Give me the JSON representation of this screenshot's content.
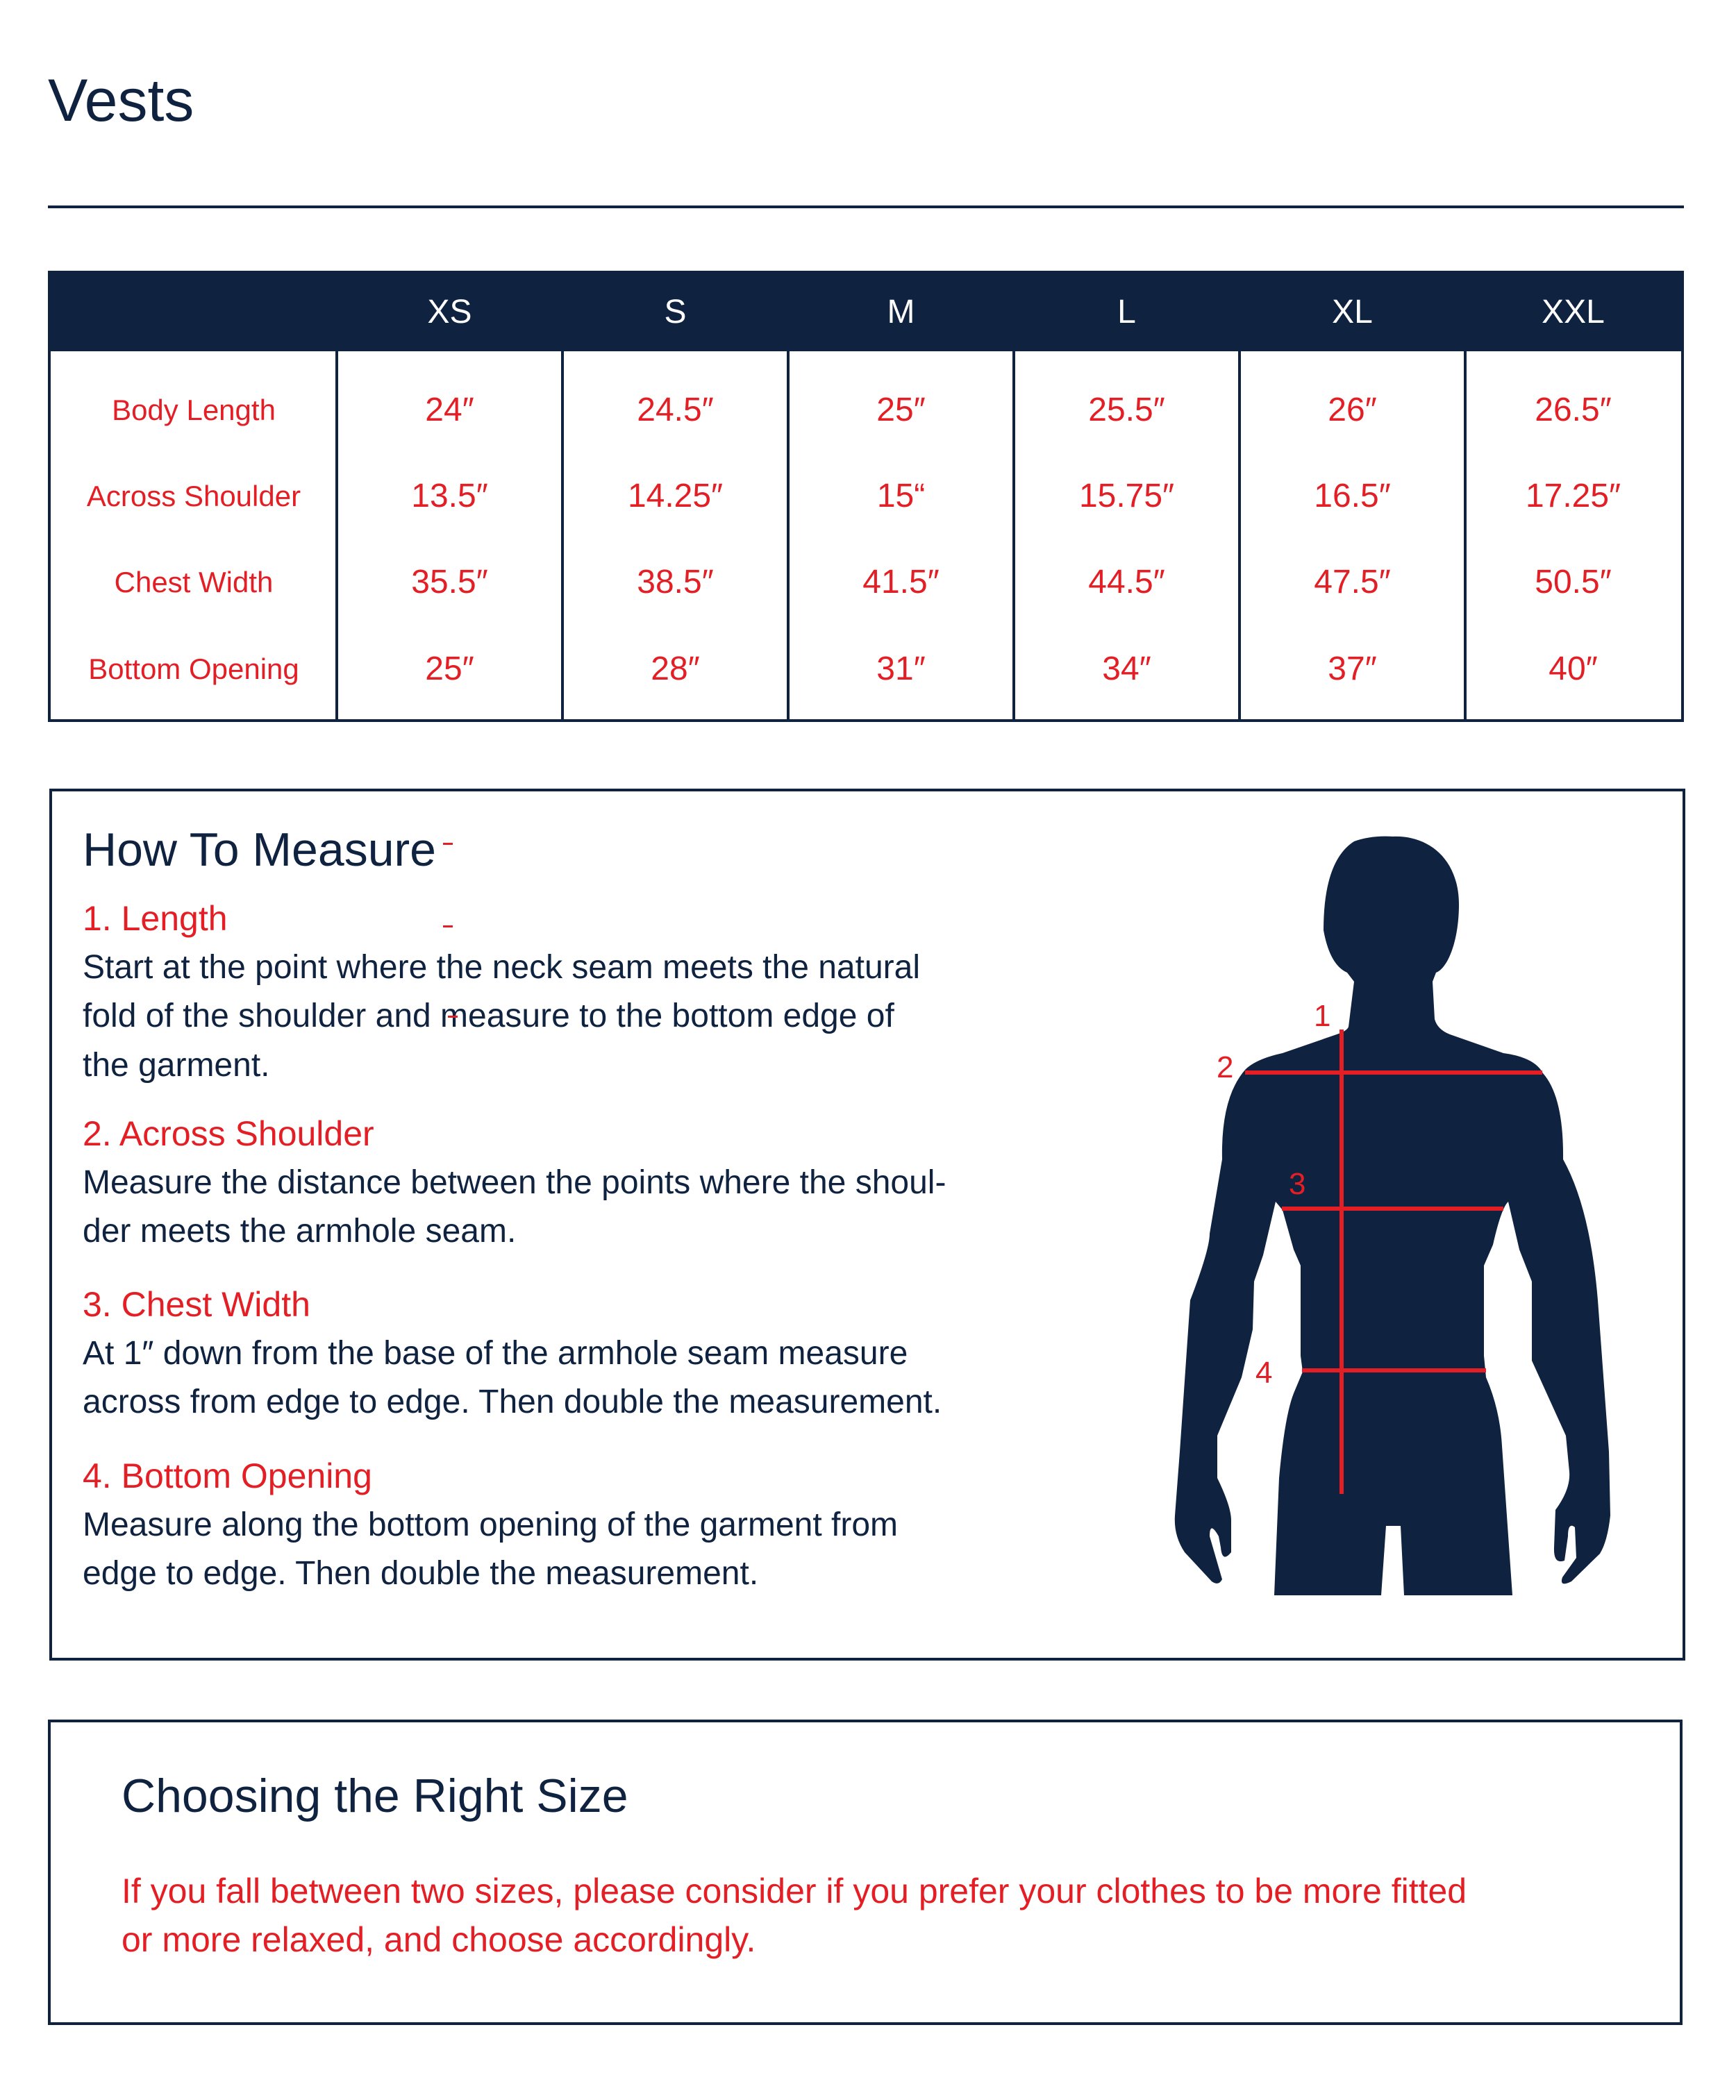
{
  "title": "Vests",
  "table": {
    "sizes": [
      "XS",
      "S",
      "M",
      "L",
      "XL",
      "XXL"
    ],
    "rows": [
      {
        "label": "Body Length",
        "values": [
          "24″",
          "24.5″",
          "25″",
          "25.5″",
          "26″",
          "26.5″"
        ]
      },
      {
        "label": "Across Shoulder",
        "values": [
          "13.5″",
          "14.25″",
          "15“",
          "15.75″",
          "16.5″",
          "17.25″"
        ]
      },
      {
        "label": "Chest Width",
        "values": [
          "35.5″",
          "38.5″",
          "41.5″",
          "44.5″",
          "47.5″",
          "50.5″"
        ]
      },
      {
        "label": "Bottom Opening",
        "values": [
          "25″",
          "28″",
          "31″",
          "34″",
          "37″",
          "40″"
        ]
      }
    ]
  },
  "how_to_measure": {
    "heading": "How To Measure",
    "sections": [
      {
        "title": "1. Length",
        "lines": [
          "Start at the point where the neck seam meets the natural",
          "fold of the shoulder and measure to the bottom edge of",
          "the garment."
        ]
      },
      {
        "title": "2. Across Shoulder",
        "lines": [
          "Measure the distance between the points where the shoul-",
          "der meets the armhole seam."
        ]
      },
      {
        "title": "3. Chest Width",
        "lines": [
          "At 1″ down from the base of the armhole seam measure",
          "across from edge to edge. Then double the measurement."
        ]
      },
      {
        "title": "4. Bottom Opening",
        "lines": [
          "Measure along the bottom opening of the garment from",
          "edge to edge. Then double the measurement."
        ]
      }
    ],
    "figure_labels": [
      "1",
      "2",
      "3",
      "4"
    ]
  },
  "choosing": {
    "heading": "Choosing the Right Size",
    "lines": [
      "If you fall between two sizes, please consider if you prefer your clothes to be more fitted",
      "or more relaxed, and choose accordingly."
    ]
  },
  "colors": {
    "navy": "#0f2341",
    "red": "#e31e24"
  }
}
